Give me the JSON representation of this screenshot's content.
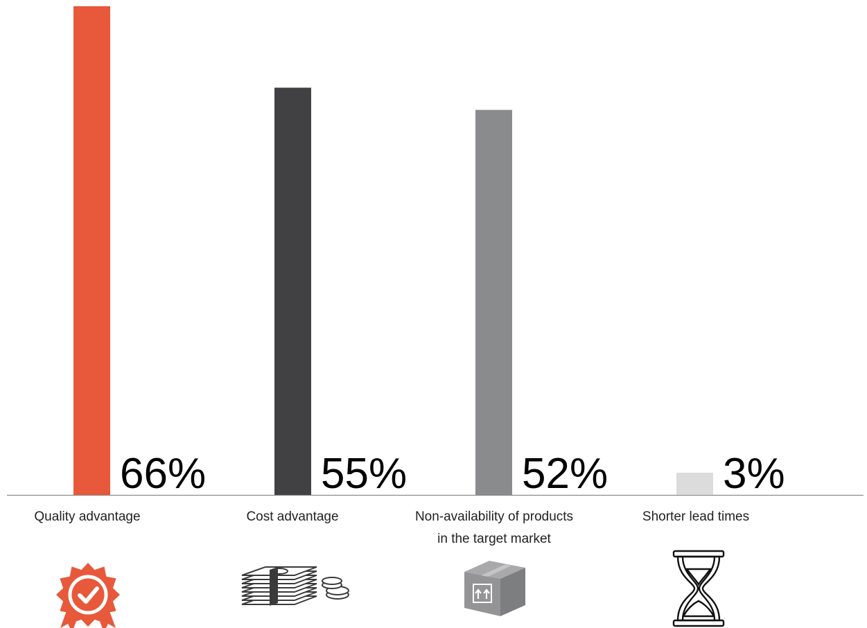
{
  "chart_data": {
    "type": "bar",
    "categories": [
      "Quality advantage",
      "Cost advantage",
      "Non-availability of products in the target market",
      "Shorter lead times"
    ],
    "category_lines": [
      [
        "Quality advantage"
      ],
      [
        "Cost advantage"
      ],
      [
        "Non-availability of products",
        "in the target market"
      ],
      [
        "Shorter lead times"
      ]
    ],
    "values": [
      66,
      55,
      52,
      3
    ],
    "value_labels": [
      "66%",
      "55%",
      "52%",
      "3%"
    ],
    "unit": "%",
    "bar_colors": [
      "#e8583a",
      "#414143",
      "#8a8b8d",
      "#dcdcdc"
    ],
    "icons": [
      "award-ribbon-icon",
      "cash-stack-coins-icon",
      "shipping-box-icon",
      "hourglass-icon"
    ],
    "title": "",
    "xlabel": "",
    "ylabel": "",
    "ylim": [
      0,
      66
    ],
    "grid": false,
    "legend": "none"
  }
}
